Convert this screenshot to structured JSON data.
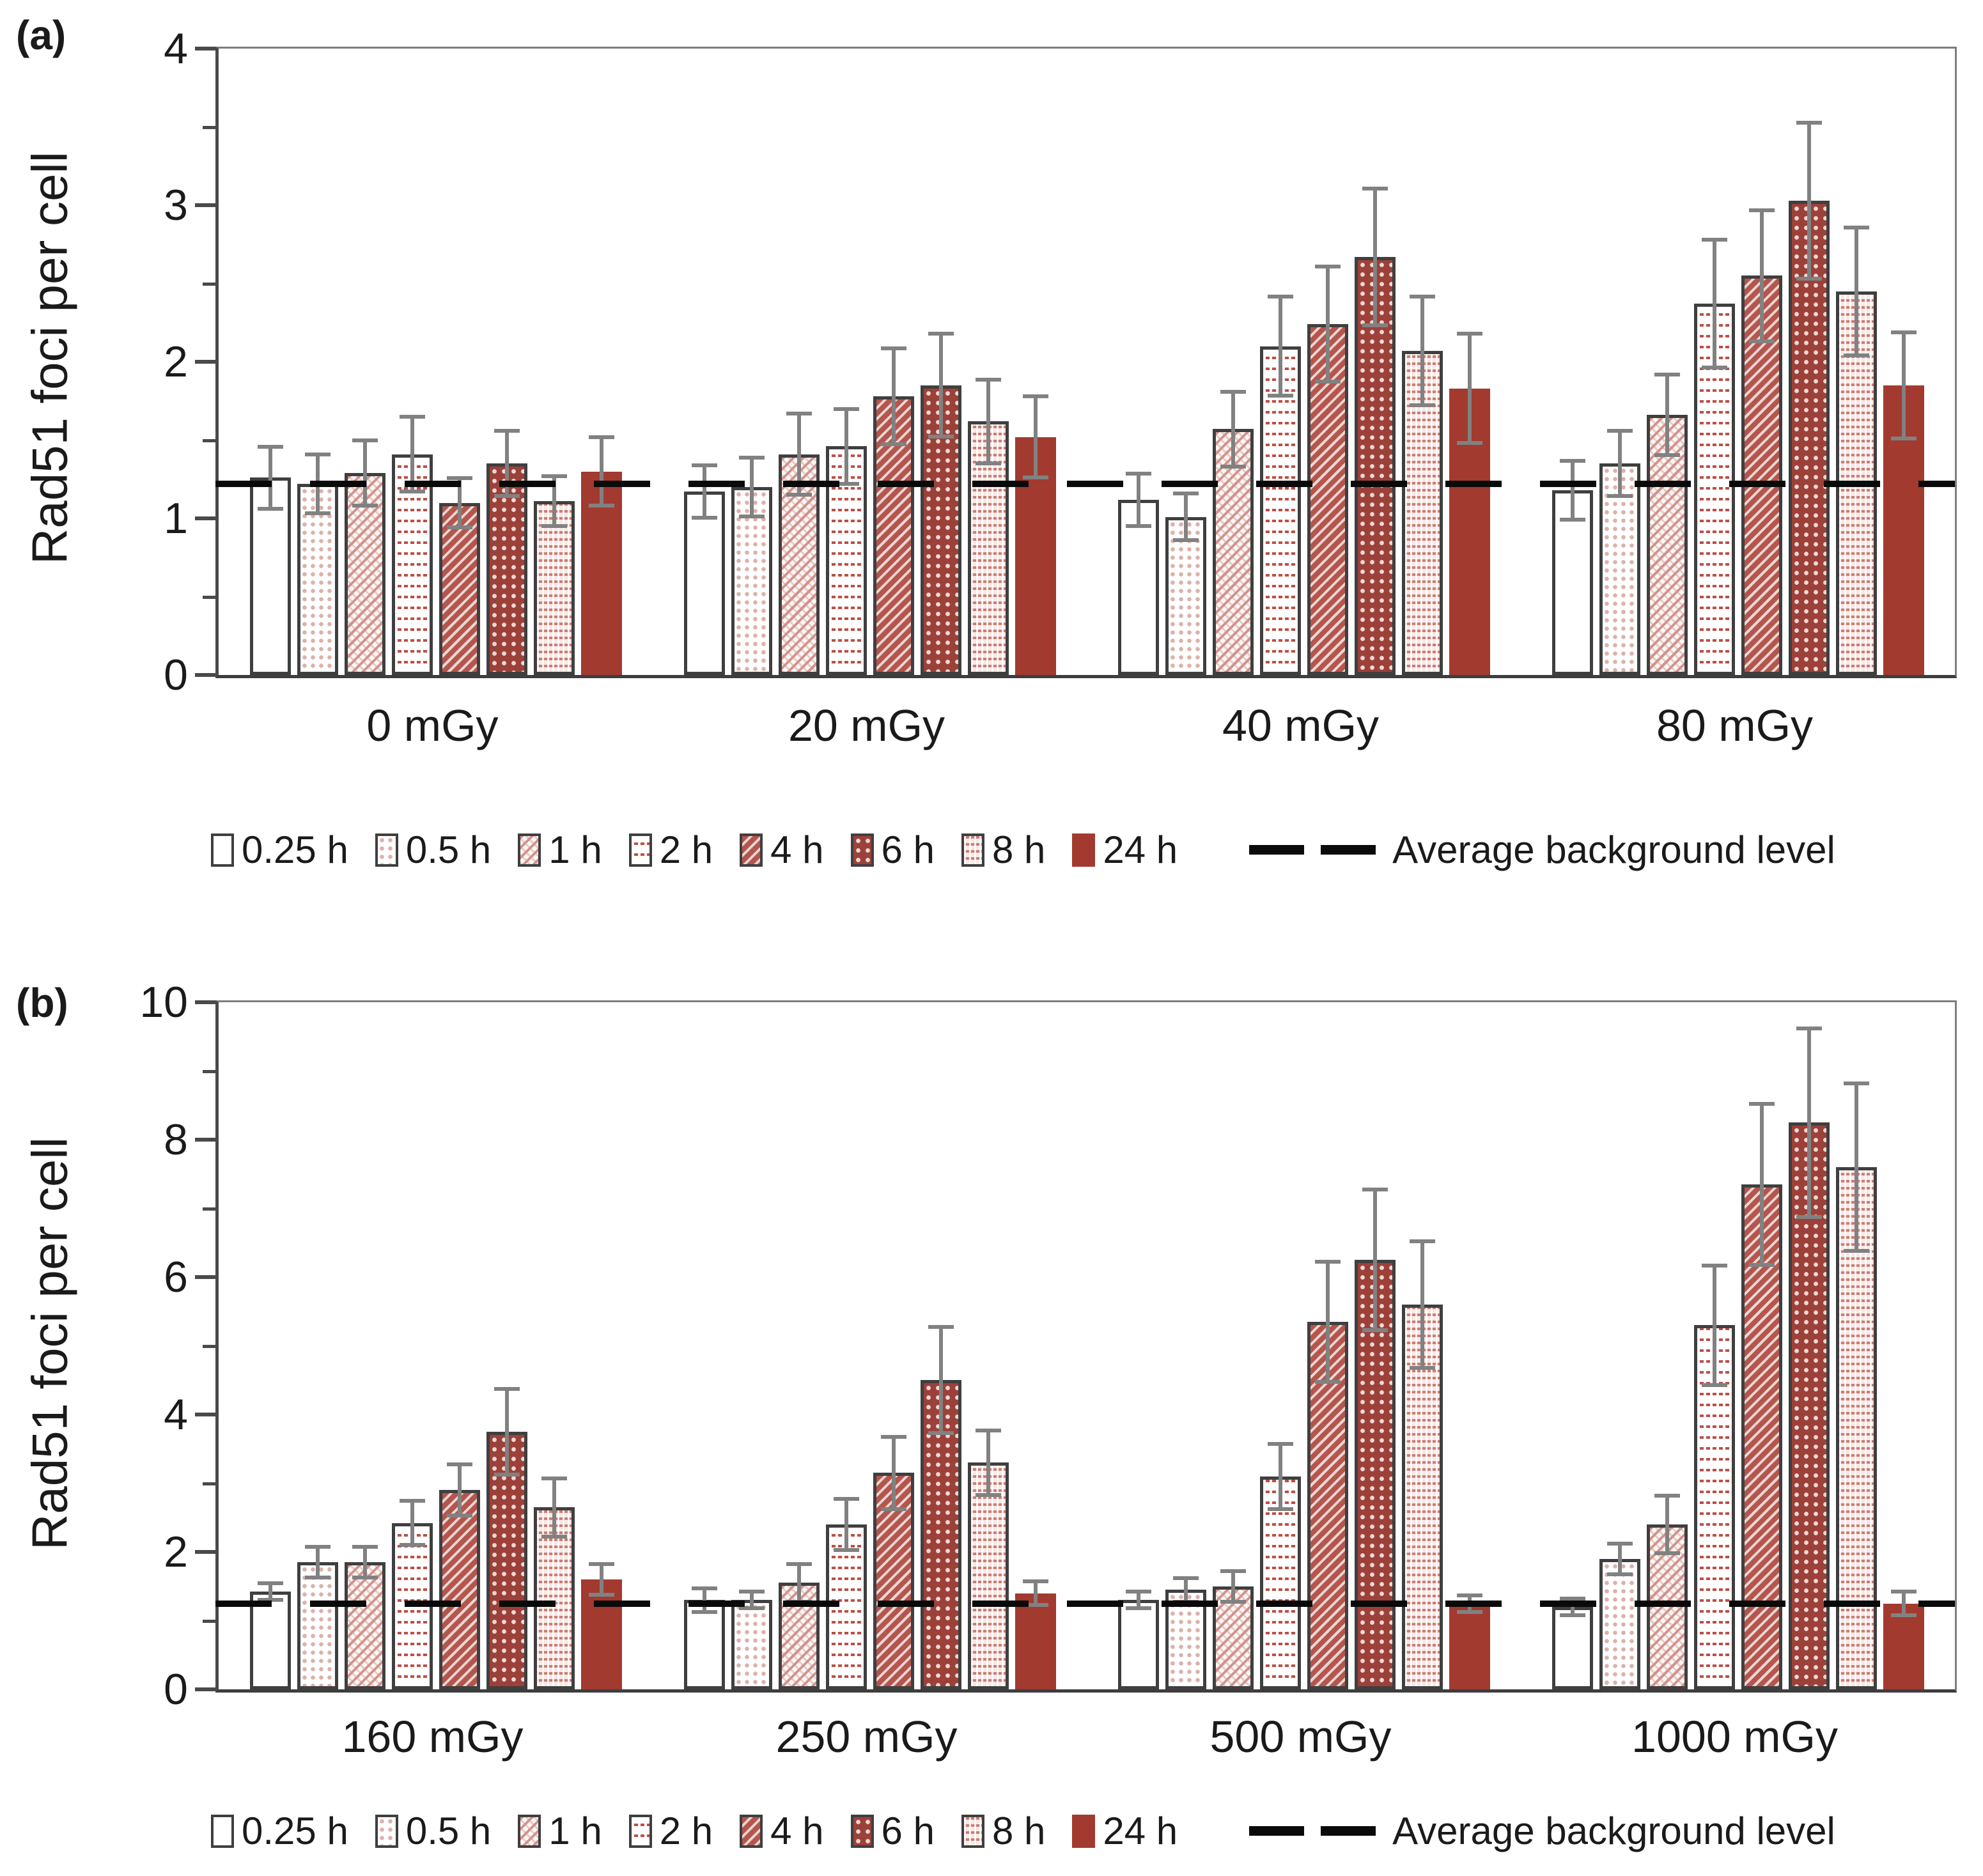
{
  "colors": {
    "solid_red": "#a23a30",
    "dark_red_checker": "#9c413a",
    "medium_red_hatch": "#b4564e",
    "light_red_dots": "#dcb2ac",
    "error_bar_gray": "#818181",
    "dash_line_black": "#0a0a0a",
    "axis_gray": "#4a4a4a",
    "text": "#1a1a1a"
  },
  "chart_data": [
    {
      "type": "bar",
      "panel_label": "(a)",
      "ylabel": "Rad51 foci per cell",
      "xlabel": "",
      "ylim": [
        0,
        4
      ],
      "ytick_labels": [
        0,
        1,
        2,
        3,
        4
      ],
      "yminor_step": 0.5,
      "grid": false,
      "legend_position": "bottom",
      "background_level": 1.22,
      "annotation": "Average background level",
      "categories": [
        "0 mGy",
        "20 mGy",
        "40 mGy",
        "80 mGy"
      ],
      "series": [
        {
          "name": "0.25 h",
          "pattern": "open",
          "values": [
            1.26,
            1.17,
            1.12,
            1.18
          ],
          "errors": [
            0.21,
            0.18,
            0.18,
            0.2
          ]
        },
        {
          "name": "0.5 h",
          "pattern": "dots",
          "values": [
            1.22,
            1.2,
            1.01,
            1.35
          ],
          "errors": [
            0.2,
            0.2,
            0.16,
            0.22
          ]
        },
        {
          "name": "1 h",
          "pattern": "diag-light",
          "values": [
            1.29,
            1.41,
            1.57,
            1.66
          ],
          "errors": [
            0.22,
            0.27,
            0.25,
            0.27
          ]
        },
        {
          "name": "2 h",
          "pattern": "zigzag",
          "values": [
            1.41,
            1.46,
            2.1,
            2.37
          ],
          "errors": [
            0.25,
            0.25,
            0.33,
            0.42
          ]
        },
        {
          "name": "4 h",
          "pattern": "diag-dark",
          "values": [
            1.1,
            1.78,
            2.24,
            2.55
          ],
          "errors": [
            0.17,
            0.32,
            0.38,
            0.43
          ]
        },
        {
          "name": "6 h",
          "pattern": "checker",
          "values": [
            1.35,
            1.85,
            2.67,
            3.03
          ],
          "errors": [
            0.22,
            0.34,
            0.45,
            0.51
          ]
        },
        {
          "name": "8 h",
          "pattern": "wave",
          "values": [
            1.11,
            1.62,
            2.07,
            2.45
          ],
          "errors": [
            0.17,
            0.28,
            0.36,
            0.42
          ]
        },
        {
          "name": "24 h",
          "pattern": "solid",
          "values": [
            1.3,
            1.52,
            1.83,
            1.85
          ],
          "errors": [
            0.23,
            0.27,
            0.36,
            0.35
          ]
        }
      ]
    },
    {
      "type": "bar",
      "panel_label": "(b)",
      "ylabel": "Rad51 foci per cell",
      "xlabel": "",
      "ylim": [
        0,
        10
      ],
      "ytick_labels": [
        0,
        2,
        4,
        6,
        8,
        10
      ],
      "yminor_step": 1,
      "grid": false,
      "legend_position": "bottom",
      "background_level": 1.25,
      "annotation": "Average background level",
      "categories": [
        "160 mGy",
        "250 mGy",
        "500 mGy",
        "1000 mGy"
      ],
      "series": [
        {
          "name": "0.25 h",
          "pattern": "open",
          "values": [
            1.42,
            1.3,
            1.3,
            1.2
          ],
          "errors": [
            0.15,
            0.2,
            0.15,
            0.15
          ]
        },
        {
          "name": "0.5 h",
          "pattern": "dots",
          "values": [
            1.85,
            1.3,
            1.45,
            1.9
          ],
          "errors": [
            0.25,
            0.15,
            0.2,
            0.25
          ]
        },
        {
          "name": "1 h",
          "pattern": "diag-light",
          "values": [
            1.85,
            1.55,
            1.5,
            2.4
          ],
          "errors": [
            0.25,
            0.3,
            0.25,
            0.45
          ]
        },
        {
          "name": "2 h",
          "pattern": "zigzag",
          "values": [
            2.42,
            2.4,
            3.1,
            5.3
          ],
          "errors": [
            0.35,
            0.4,
            0.5,
            0.9
          ]
        },
        {
          "name": "4 h",
          "pattern": "diag-dark",
          "values": [
            2.9,
            3.15,
            5.35,
            7.35
          ],
          "errors": [
            0.4,
            0.55,
            0.9,
            1.2
          ]
        },
        {
          "name": "6 h",
          "pattern": "checker",
          "values": [
            3.75,
            4.5,
            6.25,
            8.25
          ],
          "errors": [
            0.65,
            0.8,
            1.05,
            1.4
          ]
        },
        {
          "name": "8 h",
          "pattern": "wave",
          "values": [
            2.65,
            3.3,
            5.6,
            7.6
          ],
          "errors": [
            0.45,
            0.5,
            0.95,
            1.25
          ]
        },
        {
          "name": "24 h",
          "pattern": "solid",
          "values": [
            1.6,
            1.4,
            1.25,
            1.25
          ],
          "errors": [
            0.25,
            0.2,
            0.15,
            0.2
          ]
        }
      ]
    }
  ]
}
